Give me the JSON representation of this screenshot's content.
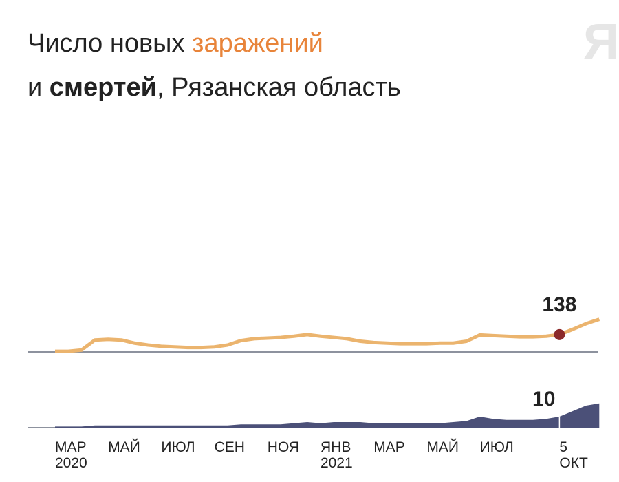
{
  "logo": "Я",
  "chart_data": {
    "type": "line",
    "title_parts": [
      "Число новых ",
      "заражений",
      "и ",
      "смертей",
      ", Рязанская область"
    ],
    "categories": [
      "МАР\n2020",
      null,
      null,
      null,
      "МАЙ",
      null,
      null,
      null,
      "ИЮЛ",
      null,
      null,
      null,
      "СЕН",
      null,
      null,
      null,
      "НОЯ",
      null,
      null,
      null,
      "ЯНВ\n2021",
      null,
      null,
      null,
      "МАР",
      null,
      null,
      null,
      "МАЙ",
      null,
      null,
      null,
      "ИЮЛ",
      null,
      null,
      null,
      null,
      null,
      "5 ОКТ",
      null,
      null,
      null
    ],
    "series": [
      {
        "type": "line",
        "color": "#ebb46e",
        "values": [
          5,
          5,
          15,
          95,
          100,
          95,
          70,
          55,
          45,
          40,
          35,
          35,
          40,
          55,
          90,
          105,
          110,
          115,
          125,
          138,
          125,
          115,
          105,
          85,
          75,
          70,
          65,
          65,
          65,
          70,
          70,
          85,
          135,
          130,
          125,
          120,
          120,
          125,
          138,
          180,
          225,
          260
        ]
      },
      {
        "type": "area",
        "color": "#4b5078",
        "values": [
          1,
          1,
          1,
          2,
          2,
          2,
          2,
          2,
          2,
          2,
          2,
          2,
          2,
          2,
          3,
          3,
          3,
          3,
          4,
          5,
          4,
          5,
          5,
          5,
          4,
          4,
          4,
          4,
          4,
          4,
          5,
          6,
          10,
          8,
          7,
          7,
          7,
          8,
          10,
          15,
          20,
          22
        ]
      }
    ]
  }
}
